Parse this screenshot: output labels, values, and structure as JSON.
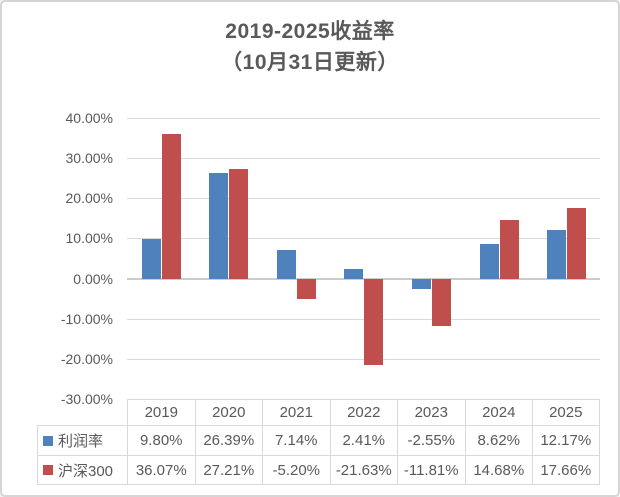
{
  "title": {
    "line1": "2019-2025收益率",
    "line2": "（10月31日更新）",
    "color": "#595959"
  },
  "chart_data": {
    "type": "bar",
    "title": "2019-2025收益率（10月31日更新）",
    "categories": [
      "2019",
      "2020",
      "2021",
      "2022",
      "2023",
      "2024",
      "2025"
    ],
    "series": [
      {
        "name": "利润率",
        "key": "profit-rate",
        "color": "#4F81BD",
        "values": [
          9.8,
          26.39,
          7.14,
          2.41,
          -2.55,
          8.62,
          12.17
        ],
        "display": [
          "9.80%",
          "26.39%",
          "7.14%",
          "2.41%",
          "-2.55%",
          "8.62%",
          "12.17%"
        ]
      },
      {
        "name": "沪深300",
        "key": "csi300",
        "color": "#BF4E4D",
        "values": [
          36.07,
          27.21,
          -5.2,
          -21.63,
          -11.81,
          14.68,
          17.66
        ],
        "display": [
          "36.07%",
          "27.21%",
          "-5.20%",
          "-21.63%",
          "-11.81%",
          "14.68%",
          "17.66%"
        ]
      }
    ],
    "y_axis": {
      "min": -30,
      "max": 40,
      "tick_step": 10,
      "tick_labels": [
        "40.00%",
        "30.00%",
        "20.00%",
        "10.00%",
        "0.00%",
        "-10.00%",
        "-20.00%",
        "-30.00%"
      ]
    },
    "grid": true,
    "legend_position": "data-table-row-headers",
    "colors": {
      "text": "#595959",
      "gridline": "#d9d9d9",
      "zero_line": "#cccccc",
      "table_border": "#d9d9d9",
      "card_border": "#d5d5d5"
    }
  }
}
